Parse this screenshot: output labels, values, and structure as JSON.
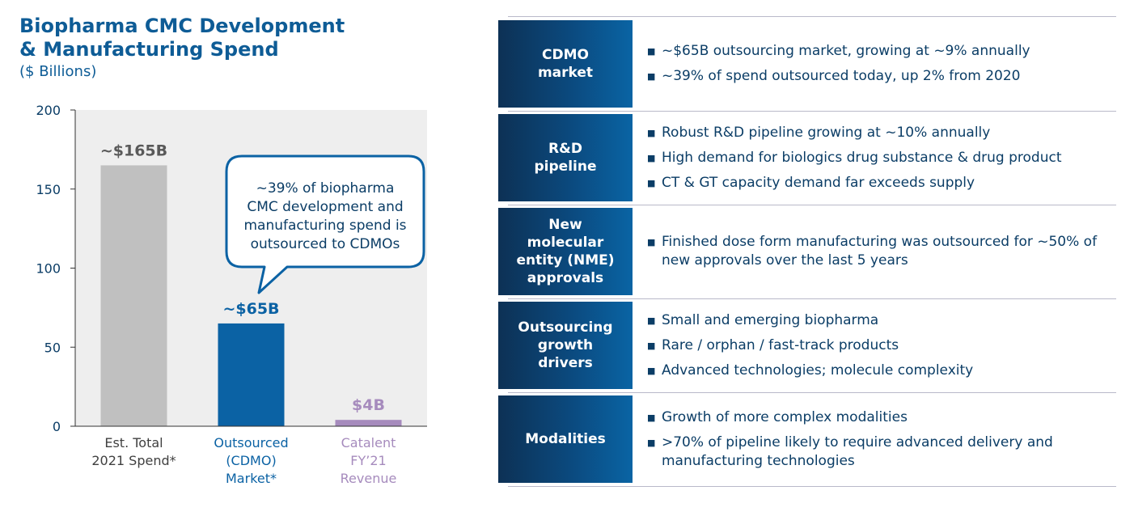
{
  "left": {
    "title": "Biopharma CMC Development\n& Manufacturing Spend",
    "subtitle": "($ Billions)",
    "callout": [
      "~39% of biopharma",
      "CMC development and",
      "manufacturing spend is",
      "outsourced to CDMOs"
    ]
  },
  "chart_data": {
    "type": "bar",
    "categories": [
      [
        "Est. Total",
        "2021 Spend*"
      ],
      [
        "Outsourced",
        "(CDMO)",
        "Market*"
      ],
      [
        "Catalent",
        "FY’21",
        "Revenue"
      ]
    ],
    "values": [
      165,
      65,
      4
    ],
    "data_labels": [
      "~$165B",
      "~$65B",
      "$4B"
    ],
    "bar_colors": [
      "#c0c0c0",
      "#0b62a4",
      "#a68bbd"
    ],
    "label_colors": [
      "#595959",
      "#0b62a4",
      "#a68bbd"
    ],
    "category_label_colors": [
      "#404040",
      "#0b62a4",
      "#a68bbd"
    ],
    "ylim": [
      0,
      200
    ],
    "yticks": [
      0,
      50,
      100,
      150,
      200
    ],
    "plot_background": "#eeeeee",
    "grid": false,
    "legend": "none"
  },
  "right": {
    "bullet_marker": "■",
    "rows": [
      {
        "label": "CDMO\nmarket",
        "bullets": [
          "~$65B outsourcing market, growing at ~9% annually",
          "~39% of spend outsourced today, up 2% from 2020"
        ]
      },
      {
        "label": "R&D\npipeline",
        "bullets": [
          "Robust R&D pipeline growing at ~10% annually",
          "High demand for biologics drug substance & drug product",
          "CT & GT capacity demand far exceeds supply"
        ]
      },
      {
        "label": "New\nmolecular\nentity (NME)\napprovals",
        "bullets": [
          "Finished dose form manufacturing was outsourced for ~50% of new approvals over the last 5 years"
        ]
      },
      {
        "label": "Outsourcing\ngrowth\ndrivers",
        "bullets": [
          "Small and emerging biopharma",
          "Rare / orphan / fast-track products",
          "Advanced technologies; molecule complexity"
        ]
      },
      {
        "label": "Modalities",
        "bullets": [
          "Growth of more complex modalities",
          ">70% of pipeline likely to require advanced delivery and manufacturing technologies"
        ]
      }
    ]
  }
}
